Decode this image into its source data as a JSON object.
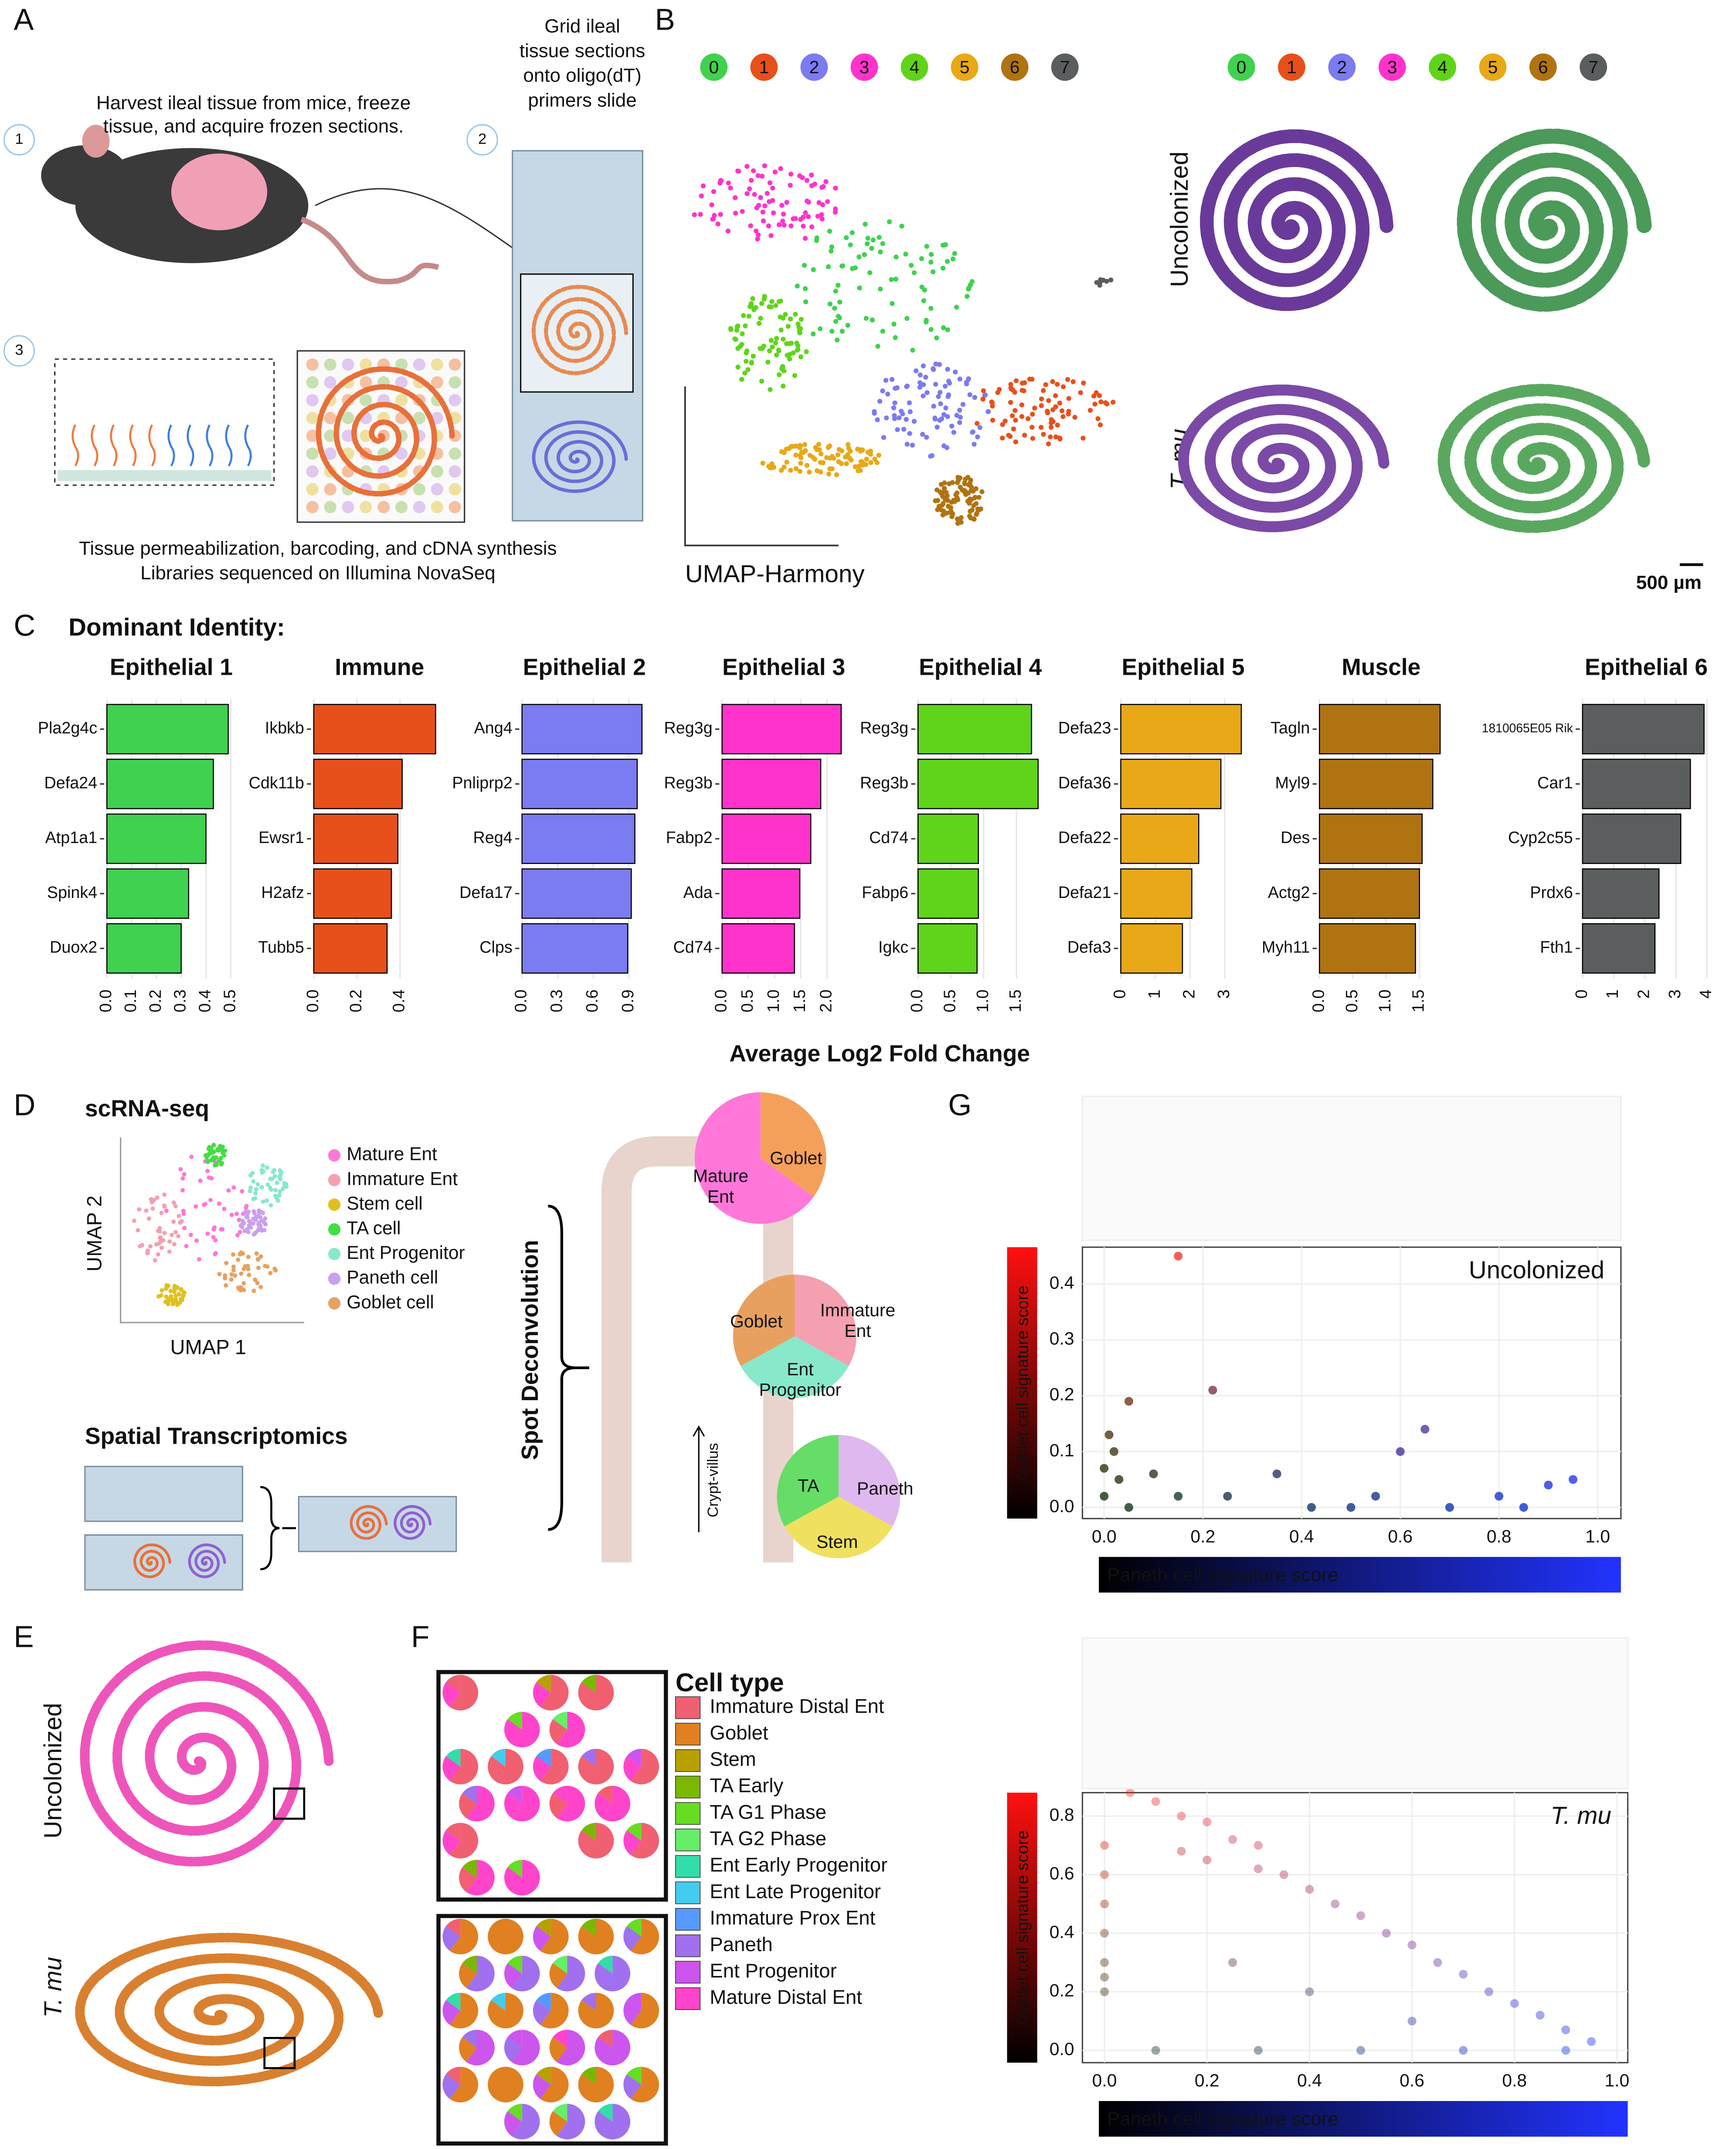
{
  "panel_labels": [
    "A",
    "B",
    "C",
    "D",
    "E",
    "F",
    "G"
  ],
  "panel_a": {
    "step_numbers": [
      "1",
      "2",
      "3"
    ],
    "step1": [
      "Harvest ileal tissue from mice, freeze",
      "tissue, and acquire frozen sections."
    ],
    "step2": [
      "Grid ileal",
      "tissue sections",
      "onto oligo(dT)",
      "primers slide"
    ],
    "step3": [
      "Tissue permeabilization, barcoding, and cDNA synthesis",
      "Libraries sequenced on Illumina NovaSeq"
    ]
  },
  "panel_b": {
    "clusters": [
      "0",
      "1",
      "2",
      "3",
      "4",
      "5",
      "6",
      "7"
    ],
    "cluster_colors": [
      "#3fd14f",
      "#e8501b",
      "#7b7bf2",
      "#ff33cc",
      "#5fd41a",
      "#e8a817",
      "#b07312",
      "#5a5e5e"
    ],
    "axis_label": "UMAP-Harmony",
    "conditions": [
      "Uncolonized",
      "T. mu"
    ],
    "scale_bar": "500 µm"
  },
  "panel_c": {
    "heading": "Dominant Identity:",
    "x_label": "Average Log2 Fold Change"
  },
  "panel_d": {
    "heading": "scRNA-seq",
    "umap_y": "UMAP 2",
    "umap_x": "UMAP 1",
    "legend": [
      {
        "name": "Mature Ent",
        "color": "#ff77d9"
      },
      {
        "name": "Immature Ent",
        "color": "#f4a0b0"
      },
      {
        "name": "Stem cell",
        "color": "#e0c020"
      },
      {
        "name": "TA cell",
        "color": "#44dd44"
      },
      {
        "name": "Ent Progenitor",
        "color": "#88e8cc"
      },
      {
        "name": "Paneth cell",
        "color": "#c8a0f0"
      },
      {
        "name": "Goblet cell",
        "color": "#e8a060"
      }
    ],
    "spatial_heading": "Spatial Transcriptomics",
    "deconvolution": "Spot Deconvolution",
    "axis_arrow": "Crypt-villus",
    "pie1": {
      "goblet": "Goblet",
      "mature": [
        "Mature",
        "Ent"
      ]
    },
    "pie2": {
      "goblet": "Goblet",
      "immature": [
        "Immature",
        "Ent"
      ],
      "progenitor": [
        "Ent",
        "Progenitor"
      ]
    },
    "pie3": {
      "ta": "TA",
      "paneth": "Paneth",
      "stem": "Stem"
    }
  },
  "panel_e": {
    "conditions": [
      "Uncolonized",
      "T. mu"
    ]
  },
  "panel_f": {
    "legend_title": "Cell type",
    "cell_types": [
      {
        "name": "Immature Distal Ent",
        "color": "#f06070"
      },
      {
        "name": "Goblet",
        "color": "#e08020"
      },
      {
        "name": "Stem",
        "color": "#b8a000"
      },
      {
        "name": "TA Early",
        "color": "#7ab800"
      },
      {
        "name": "TA G1 Phase",
        "color": "#66dd22"
      },
      {
        "name": "TA G2 Phase",
        "color": "#66ee66"
      },
      {
        "name": "Ent Early Progenitor",
        "color": "#33ddaa"
      },
      {
        "name": "Ent Late Progenitor",
        "color": "#44ccee"
      },
      {
        "name": "Immature Prox Ent",
        "color": "#5599ff"
      },
      {
        "name": "Paneth",
        "color": "#a070ee"
      },
      {
        "name": "Ent Progenitor",
        "color": "#cc55ee"
      },
      {
        "name": "Mature Distal Ent",
        "color": "#ff44cc"
      }
    ]
  },
  "chart_data": [
    {
      "type": "bar",
      "title": "Epithelial 1",
      "categories": [
        "Pla2g4c",
        "Defa24",
        "Atp1a1",
        "Spink4",
        "Duox2"
      ],
      "values": [
        0.49,
        0.43,
        0.4,
        0.33,
        0.3
      ],
      "color": "#3fd14f",
      "xlim": [
        0,
        0.52
      ],
      "xticks": [
        {
          "value": 0,
          "label": "0.0"
        },
        0.1,
        0.2,
        0.3,
        0.4,
        0.5
      ]
    },
    {
      "type": "bar",
      "title": "Immune",
      "categories": [
        "Ikbkb",
        "Cdk11b",
        "Ewsr1",
        "H2afz",
        "Tubb5"
      ],
      "values": [
        0.565,
        0.41,
        0.39,
        0.36,
        0.34
      ],
      "color": "#e8501b",
      "xlim": [
        0,
        0.61
      ],
      "xticks": [
        {
          "value": 0,
          "label": "0.0"
        },
        0.2,
        0.4
      ]
    },
    {
      "type": "bar",
      "title": "Epithelial 2",
      "categories": [
        "Ang4",
        "Pnliprp2",
        "Reg4",
        "Defa17",
        "Clps"
      ],
      "values": [
        1.01,
        0.97,
        0.95,
        0.92,
        0.89
      ],
      "color": "#7b7bf2",
      "xlim": [
        0,
        1.05
      ],
      "xticks": [
        {
          "value": 0,
          "label": "0.0"
        },
        0.3,
        0.6,
        0.9
      ]
    },
    {
      "type": "bar",
      "title": "Epithelial 3",
      "categories": [
        "Reg3g",
        "Reg3b",
        "Fabp2",
        "Ada",
        "Cd74"
      ],
      "values": [
        2.27,
        1.88,
        1.69,
        1.48,
        1.38
      ],
      "color": "#ff33cc",
      "xlim": [
        0,
        2.35
      ],
      "xticks": [
        {
          "value": 0,
          "label": "0.0"
        },
        0.5,
        {
          "value": 1,
          "label": "1.0"
        },
        1.5,
        {
          "value": 2,
          "label": "2.0"
        }
      ]
    },
    {
      "type": "bar",
      "title": "Epithelial 4",
      "categories": [
        "Reg3g",
        "Reg3b",
        "Cd74",
        "Fabp6",
        "Igkc"
      ],
      "values": [
        1.73,
        1.83,
        0.92,
        0.92,
        0.9
      ],
      "color": "#5fd41a",
      "xlim": [
        0,
        1.9
      ],
      "xticks": [
        {
          "value": 0,
          "label": "0.0"
        },
        0.5,
        {
          "value": 1,
          "label": "1.0"
        },
        1.5
      ]
    },
    {
      "type": "bar",
      "title": "Epithelial 5",
      "categories": [
        "Defa23",
        "Defa36",
        "Defa22",
        "Defa21",
        "Defa3"
      ],
      "values": [
        3.48,
        2.89,
        2.25,
        2.05,
        1.78
      ],
      "color": "#e8a817",
      "xlim": [
        0,
        3.6
      ],
      "xticks": [
        0,
        1,
        2,
        3
      ]
    },
    {
      "type": "bar",
      "title": "Muscle",
      "categories": [
        "Tagln",
        "Myl9",
        "Des",
        "Actg2",
        "Myh11"
      ],
      "values": [
        1.81,
        1.7,
        1.54,
        1.5,
        1.44
      ],
      "color": "#b07312",
      "xlim": [
        0,
        1.85
      ],
      "xticks": [
        {
          "value": 0,
          "label": "0.0"
        },
        0.5,
        {
          "value": 1,
          "label": "1.0"
        },
        1.5
      ]
    },
    {
      "type": "bar",
      "title": "Epithelial 6",
      "categories": [
        "1810065E05 Rik",
        "Car1",
        "Cyp2c55",
        "Prdx6",
        "Fth1"
      ],
      "values": [
        3.91,
        3.47,
        3.16,
        2.46,
        2.33
      ],
      "color": "#5a5e5e",
      "xlim": [
        0,
        4.1
      ],
      "xticks": [
        0,
        1,
        2,
        3,
        4
      ]
    },
    {
      "type": "scatter",
      "annotation": "Uncolonized",
      "x_label": "Paneth cell signature score",
      "y_label": "Goblet cell signature score",
      "x": [
        0.15,
        0.22,
        0.05,
        0.65,
        0.6,
        0.35,
        0.95,
        0.9,
        0.8,
        0.55,
        0.42,
        0.7,
        0.1,
        0.02,
        0,
        0.15,
        0.01,
        0.03,
        0.5,
        0.85,
        0.25,
        0,
        0.05
      ],
      "y": [
        0.45,
        0.21,
        0.19,
        0.14,
        0.1,
        0.06,
        0.05,
        0.04,
        0.02,
        0.02,
        0,
        0,
        0.06,
        0.1,
        0.02,
        0.02,
        0.13,
        0.05,
        0,
        0,
        0.02,
        0.07,
        0
      ],
      "xlim": [
        -0.044,
        1.047
      ],
      "ylim": [
        -0.02,
        0.466
      ],
      "xticks": [
        {
          "value": 0,
          "label": "0.0"
        },
        0.2,
        0.4,
        0.6,
        0.8,
        {
          "value": 1,
          "label": "1.0"
        }
      ],
      "yticks": [
        {
          "value": 0,
          "label": "0.0"
        },
        0.1,
        0.2,
        0.3,
        0.4
      ]
    },
    {
      "type": "scatter",
      "annotation": "T. mu",
      "x_label": "Paneth cell signature score",
      "y_label": "Goblet cell signature score",
      "x": [
        0,
        0,
        0,
        0,
        0,
        0,
        0,
        0.05,
        0.1,
        0.15,
        0.2,
        0.25,
        0.3,
        0.35,
        0.4,
        0.45,
        0.5,
        0.55,
        0.6,
        0.65,
        0.7,
        0.75,
        0.8,
        0.85,
        0.9,
        0.95,
        0.2,
        0.3,
        0.15,
        0.1,
        0.3,
        0.5,
        0.7,
        0.9,
        0.4,
        0.6,
        0.25
      ],
      "y": [
        0.2,
        0.3,
        0.4,
        0.5,
        0.6,
        0.7,
        0.25,
        0.88,
        0.85,
        0.8,
        0.78,
        0.72,
        0.62,
        0.6,
        0.55,
        0.5,
        0.46,
        0.4,
        0.36,
        0.3,
        0.26,
        0.2,
        0.16,
        0.12,
        0.07,
        0.03,
        0.65,
        0.7,
        0.68,
        0,
        0,
        0,
        0,
        0,
        0.2,
        0.1,
        0.3
      ],
      "xlim": [
        -0.043,
        1.021
      ],
      "ylim": [
        -0.042,
        0.88
      ],
      "xticks": [
        {
          "value": 0,
          "label": "0.0"
        },
        0.2,
        0.4,
        0.6,
        0.8,
        {
          "value": 1,
          "label": "1.0"
        }
      ],
      "yticks": [
        {
          "value": 0,
          "label": "0.0"
        },
        0.2,
        0.4,
        0.6,
        0.8
      ]
    }
  ]
}
